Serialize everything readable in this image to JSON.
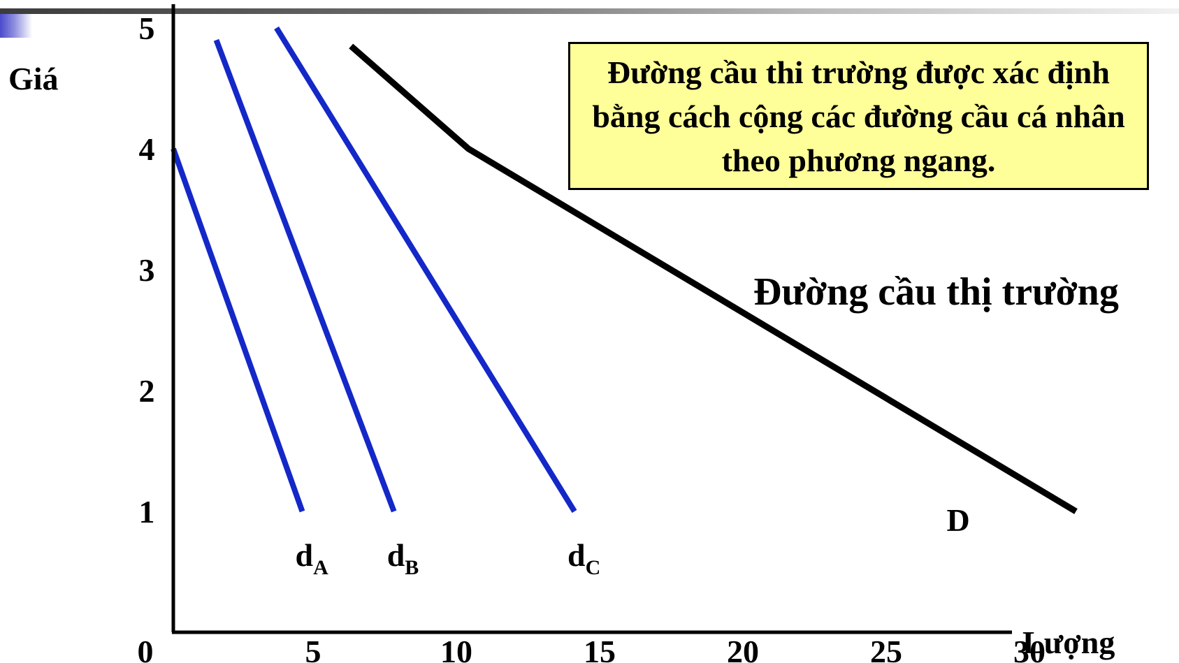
{
  "note": "Đường cầu thi trường được xác định bằng cách cộng các đường cầu cá nhân theo phương ngang.",
  "colors": {
    "individual": "#1428c8",
    "market": "#000000",
    "note_bg": "#ffff99"
  },
  "chart_data": {
    "type": "line",
    "xlabel": "Lượng",
    "ylabel": "Giá",
    "xlim": [
      0,
      30
    ],
    "ylim": [
      0,
      5
    ],
    "x_ticks": [
      "0",
      "5",
      "10",
      "15",
      "20",
      "25",
      "30"
    ],
    "y_ticks": [
      "1",
      "2",
      "3",
      "4",
      "5"
    ],
    "market_label": "Đường cầu thị trường",
    "series": [
      {
        "name": "d",
        "sub": "A",
        "color": "#1428c8",
        "points": [
          [
            0,
            4
          ],
          [
            4.5,
            1
          ]
        ]
      },
      {
        "name": "d",
        "sub": "B",
        "color": "#1428c8",
        "points": [
          [
            1.5,
            4.9
          ],
          [
            7.7,
            1
          ]
        ]
      },
      {
        "name": "d",
        "sub": "C",
        "color": "#1428c8",
        "points": [
          [
            3.6,
            5
          ],
          [
            14,
            1
          ]
        ]
      },
      {
        "name": "D",
        "sub": "",
        "color": "#000000",
        "points": [
          [
            6.2,
            4.85
          ],
          [
            10.3,
            4
          ],
          [
            31.5,
            1
          ]
        ]
      }
    ]
  }
}
